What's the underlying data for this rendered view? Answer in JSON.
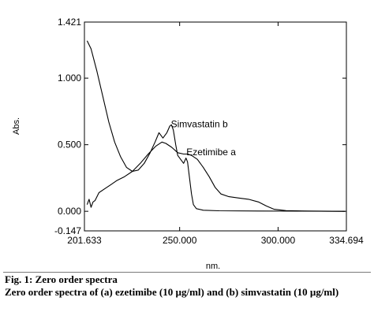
{
  "chart_data": {
    "type": "line",
    "xlabel": "nm.",
    "ylabel": "Abs.",
    "xlim": [
      201.633,
      334.694
    ],
    "ylim": [
      -0.147,
      1.421
    ],
    "x_ticks": [
      "201.633",
      "250.000",
      "300.000",
      "334.694"
    ],
    "y_ticks": [
      "1.421",
      "1.000",
      "0.500",
      "0.000",
      "-0.147"
    ],
    "grid": false,
    "series": [
      {
        "name": "Simvastatin b",
        "points": [
          [
            203.0,
            1.28
          ],
          [
            205.0,
            1.22
          ],
          [
            208.0,
            1.05
          ],
          [
            211.0,
            0.86
          ],
          [
            214.0,
            0.67
          ],
          [
            217.0,
            0.52
          ],
          [
            220.0,
            0.41
          ],
          [
            223.0,
            0.33
          ],
          [
            226.0,
            0.3
          ],
          [
            229.0,
            0.31
          ],
          [
            232.0,
            0.36
          ],
          [
            235.0,
            0.44
          ],
          [
            237.5,
            0.52
          ],
          [
            239.5,
            0.59
          ],
          [
            241.5,
            0.55
          ],
          [
            243.5,
            0.59
          ],
          [
            245.0,
            0.64
          ],
          [
            245.8,
            0.65
          ],
          [
            246.8,
            0.61
          ],
          [
            248.0,
            0.5
          ],
          [
            249.0,
            0.42
          ],
          [
            250.5,
            0.39
          ],
          [
            252.0,
            0.36
          ],
          [
            253.2,
            0.4
          ],
          [
            254.0,
            0.37
          ],
          [
            255.0,
            0.25
          ],
          [
            256.0,
            0.13
          ],
          [
            257.0,
            0.05
          ],
          [
            258.5,
            0.02
          ],
          [
            262.0,
            0.008
          ],
          [
            270.0,
            0.004
          ],
          [
            290.0,
            0.002
          ],
          [
            334.0,
            0.0
          ]
        ]
      },
      {
        "name": "Ezetimibe a",
        "points": [
          [
            203.0,
            0.05
          ],
          [
            204.0,
            0.09
          ],
          [
            205.0,
            0.03
          ],
          [
            206.0,
            0.07
          ],
          [
            207.0,
            0.08
          ],
          [
            209.0,
            0.14
          ],
          [
            212.0,
            0.17
          ],
          [
            215.0,
            0.2
          ],
          [
            218.0,
            0.23
          ],
          [
            222.0,
            0.26
          ],
          [
            226.0,
            0.3
          ],
          [
            230.0,
            0.36
          ],
          [
            234.0,
            0.43
          ],
          [
            238.0,
            0.49
          ],
          [
            241.0,
            0.52
          ],
          [
            243.0,
            0.51
          ],
          [
            246.0,
            0.48
          ],
          [
            249.0,
            0.44
          ],
          [
            252.0,
            0.43
          ],
          [
            254.0,
            0.43
          ],
          [
            256.0,
            0.42
          ],
          [
            259.0,
            0.39
          ],
          [
            262.0,
            0.33
          ],
          [
            265.0,
            0.26
          ],
          [
            268.0,
            0.18
          ],
          [
            271.0,
            0.13
          ],
          [
            275.0,
            0.11
          ],
          [
            280.0,
            0.1
          ],
          [
            285.0,
            0.09
          ],
          [
            290.0,
            0.07
          ],
          [
            294.0,
            0.04
          ],
          [
            298.0,
            0.015
          ],
          [
            304.0,
            0.005
          ],
          [
            315.0,
            0.002
          ],
          [
            334.0,
            0.0
          ]
        ]
      }
    ],
    "annotations": [
      {
        "text": "Simvastatin b",
        "x": 260.0,
        "y": 0.63
      },
      {
        "text": "Ezetimibe a",
        "x": 266.0,
        "y": 0.42
      }
    ]
  },
  "caption": {
    "line1": "Fig. 1: Zero order spectra",
    "line2": "Zero order spectra of (a) ezetimibe (10 µg/ml) and (b) simvastatin (10 µg/ml)"
  }
}
